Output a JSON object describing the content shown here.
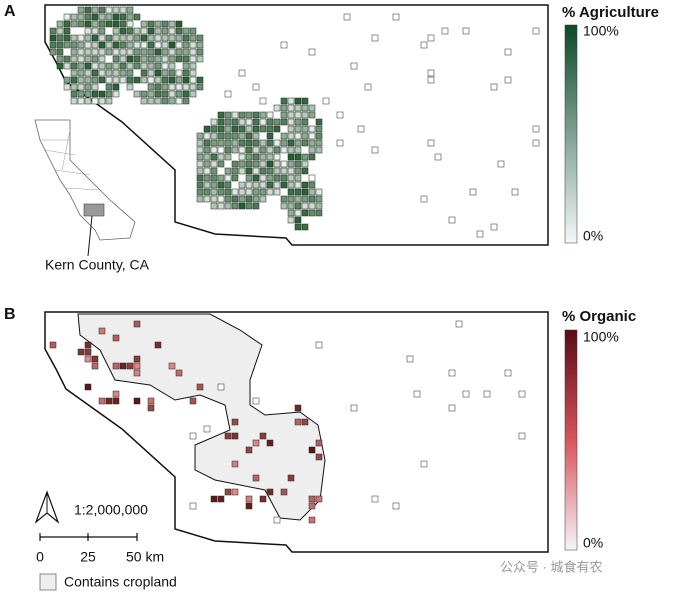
{
  "panels": [
    {
      "label": "A",
      "legend": {
        "title": "% Agriculture",
        "max_label": "100%",
        "min_label": "0%"
      }
    },
    {
      "label": "B",
      "legend": {
        "title": "% Organic",
        "max_label": "100%",
        "min_label": "0%"
      }
    }
  ],
  "inset": {
    "label": "Kern County, CA"
  },
  "scale": {
    "ratio": "1:2,000,000",
    "ticks": [
      "0",
      "25",
      "50 km"
    ]
  },
  "cropland_legend": "Contains cropland",
  "watermark": "公众号 · 城食有农"
}
